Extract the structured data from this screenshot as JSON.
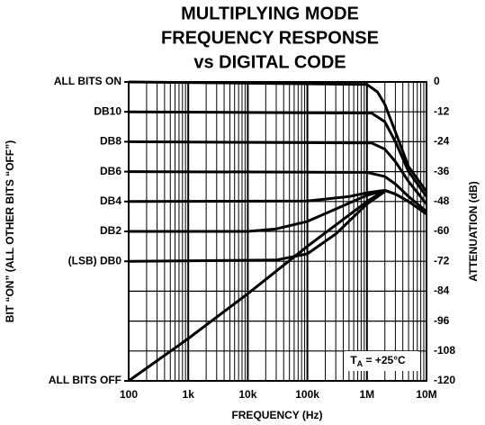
{
  "chart_data": {
    "type": "line",
    "title": [
      "MULTIPLYING MODE",
      "FREQUENCY RESPONSE",
      "vs DIGITAL CODE"
    ],
    "x_label": "FREQUENCY (Hz)",
    "y_label": "BIT “ON” (ALL OTHER BITS “OFF”)",
    "y2_label": "ATTENUATION (dB)",
    "xlog": true,
    "xlim": [
      100,
      10000000
    ],
    "xticks": [
      100,
      {
        "value": 1000,
        "label": "1k"
      },
      {
        "value": 10000,
        "label": "10k"
      },
      {
        "value": 100000,
        "label": "100k"
      },
      {
        "value": 1000000,
        "label": "1M"
      },
      {
        "value": 10000000,
        "label": "10M"
      }
    ],
    "xminorticks": [
      200,
      300,
      400,
      500,
      600,
      700,
      800,
      900,
      2000,
      3000,
      4000,
      5000,
      6000,
      7000,
      8000,
      9000,
      20000,
      30000,
      40000,
      50000,
      60000,
      70000,
      80000,
      90000,
      200000,
      300000,
      400000,
      500000,
      600000,
      700000,
      800000,
      900000,
      2000000,
      3000000,
      4000000,
      5000000,
      6000000,
      7000000,
      8000000,
      9000000
    ],
    "ylim": [
      -120,
      0
    ],
    "yticks": [
      0,
      -12,
      -24,
      -36,
      -48,
      -60,
      -72,
      -84,
      -96,
      -108,
      -120
    ],
    "left_labels": [
      {
        "value": 0,
        "label": "ALL BITS ON"
      },
      {
        "value": -12,
        "label": "DB10"
      },
      {
        "value": -24,
        "label": "DB8"
      },
      {
        "value": -36,
        "label": "DB6"
      },
      {
        "value": -48,
        "label": "DB4"
      },
      {
        "value": -60,
        "label": "DB2"
      },
      {
        "value": -72,
        "label": "(LSB) DB0"
      },
      {
        "value": -120,
        "label": "ALL BITS OFF"
      }
    ],
    "grid": true,
    "annotation": {
      "text": "T",
      "sub": "A",
      "rest": " = +25°C"
    },
    "series": [
      {
        "color": "#000",
        "x": [
          100,
          1000000,
          1500000,
          2000000,
          3000000,
          5000000,
          10000000
        ],
        "values": [
          0,
          -1,
          -4,
          -9,
          -20,
          -34,
          -44
        ]
      },
      {
        "color": "#000",
        "x": [
          100,
          1200000,
          2000000,
          3000000,
          5000000,
          10000000
        ],
        "values": [
          -12,
          -12.5,
          -16,
          -24,
          -36,
          -46
        ]
      },
      {
        "color": "#000",
        "x": [
          100,
          1200000,
          2000000,
          3000000,
          5000000,
          10000000
        ],
        "values": [
          -24,
          -24.5,
          -27,
          -32,
          -40,
          -49
        ]
      },
      {
        "color": "#000",
        "x": [
          100,
          1000000,
          2000000,
          3000000,
          5000000,
          10000000
        ],
        "values": [
          -36,
          -36.3,
          -38,
          -41,
          -46,
          -52
        ]
      },
      {
        "color": "#000",
        "x": [
          100,
          100000,
          500000,
          1000000,
          2000000,
          3000000,
          5000000,
          10000000
        ],
        "values": [
          -48,
          -47.8,
          -46,
          -44.5,
          -43.5,
          -45,
          -48,
          -53
        ]
      },
      {
        "color": "#000",
        "x": [
          100,
          10000,
          30000,
          100000,
          300000,
          1000000,
          2000000
        ],
        "values": [
          -60,
          -60,
          -59,
          -56,
          -51,
          -45.5,
          -43.5
        ]
      },
      {
        "color": "#000",
        "x": [
          100,
          30000,
          100000,
          300000,
          1000000,
          2000000
        ],
        "values": [
          -72,
          -71.5,
          -69,
          -61,
          -49,
          -44
        ]
      },
      {
        "color": "#000",
        "x": [
          100,
          1000,
          10000,
          100000,
          1000000,
          2000000,
          3000000,
          5000000,
          10000000
        ],
        "values": [
          -120,
          -103,
          -85,
          -66,
          -48,
          -43.5,
          -45,
          -48,
          -53
        ]
      }
    ]
  }
}
